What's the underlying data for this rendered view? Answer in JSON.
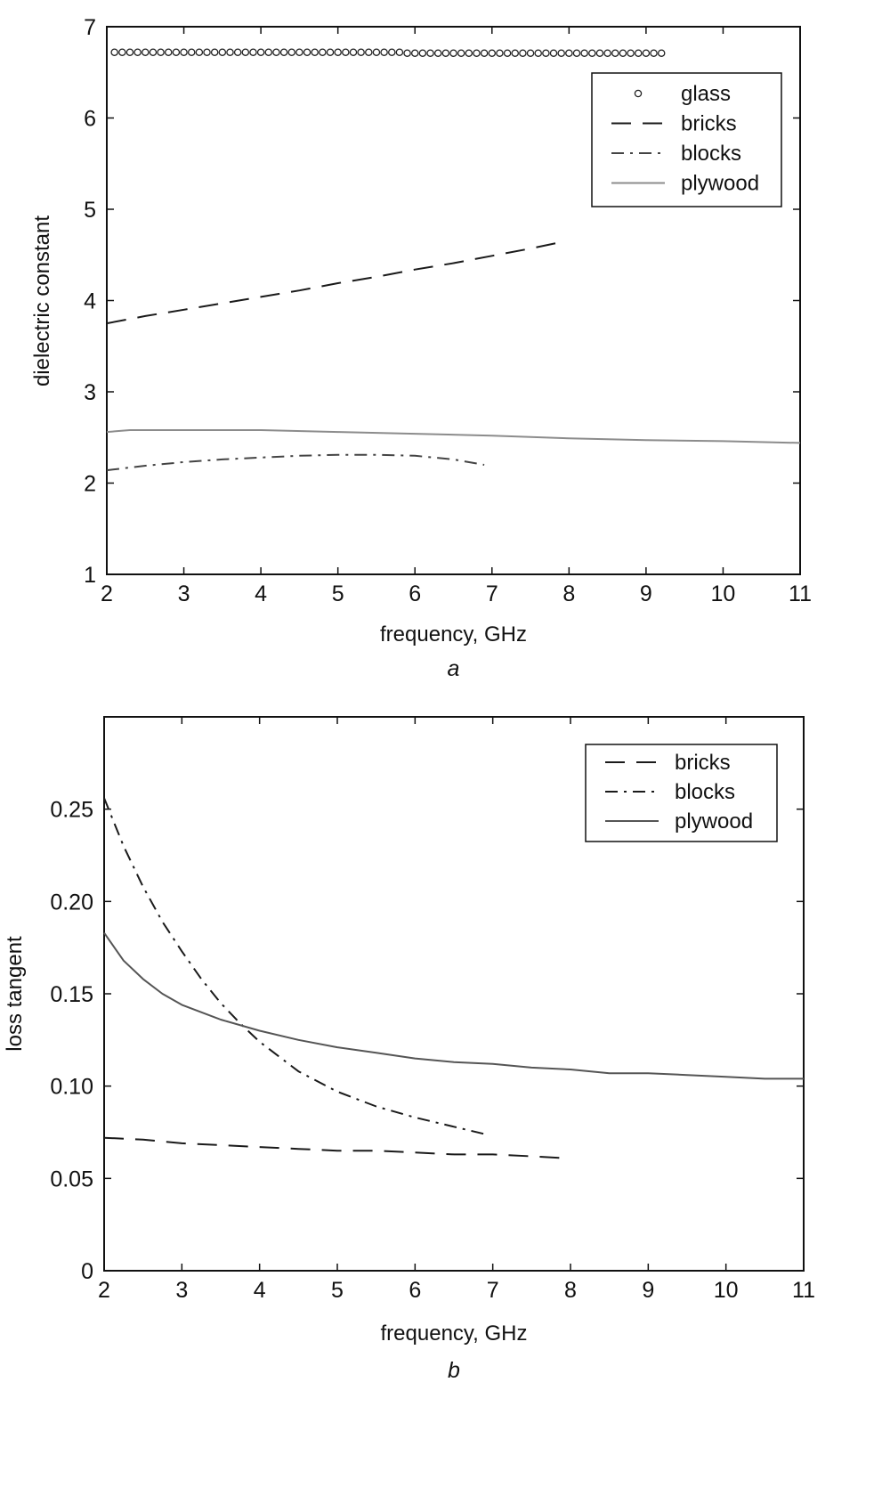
{
  "chart_data": [
    {
      "type": "line",
      "panel_label": "a",
      "xlabel": "frequency, GHz",
      "ylabel": "dielectric constant",
      "xlim": [
        2,
        11
      ],
      "ylim": [
        1,
        7
      ],
      "xticks": [
        2,
        3,
        4,
        5,
        6,
        7,
        8,
        9,
        10,
        11
      ],
      "yticks": [
        1,
        2,
        3,
        4,
        5,
        6,
        7
      ],
      "grid": false,
      "legend_position": "top-right",
      "series": [
        {
          "name": "glass",
          "style": "circles",
          "color": "#222222",
          "x": [
            2.1,
            2.2,
            2.3,
            2.4,
            2.5,
            2.6,
            2.7,
            2.8,
            2.9,
            3.0,
            3.1,
            3.2,
            3.3,
            3.4,
            3.5,
            3.6,
            3.7,
            3.8,
            3.9,
            4.0,
            4.1,
            4.2,
            4.3,
            4.4,
            4.5,
            4.6,
            4.7,
            4.8,
            4.9,
            5.0,
            5.1,
            5.2,
            5.3,
            5.4,
            5.5,
            5.6,
            5.7,
            5.8,
            5.9,
            6.0,
            6.1,
            6.2,
            6.3,
            6.4,
            6.5,
            6.6,
            6.7,
            6.8,
            6.9,
            7.0,
            7.1,
            7.2,
            7.3,
            7.4,
            7.5,
            7.6,
            7.7,
            7.8,
            7.9,
            8.0,
            8.1,
            8.2,
            8.3,
            8.4,
            8.5,
            8.6,
            8.7,
            8.8,
            8.9,
            9.0,
            9.1,
            9.2
          ],
          "y": [
            6.72,
            6.72,
            6.72,
            6.72,
            6.72,
            6.72,
            6.72,
            6.72,
            6.72,
            6.72,
            6.72,
            6.72,
            6.72,
            6.72,
            6.72,
            6.72,
            6.72,
            6.72,
            6.72,
            6.72,
            6.72,
            6.72,
            6.72,
            6.72,
            6.72,
            6.72,
            6.72,
            6.72,
            6.72,
            6.72,
            6.72,
            6.72,
            6.72,
            6.72,
            6.72,
            6.72,
            6.72,
            6.72,
            6.71,
            6.71,
            6.71,
            6.71,
            6.71,
            6.71,
            6.71,
            6.71,
            6.71,
            6.71,
            6.71,
            6.71,
            6.71,
            6.71,
            6.71,
            6.71,
            6.71,
            6.71,
            6.71,
            6.71,
            6.71,
            6.71,
            6.71,
            6.71,
            6.71,
            6.71,
            6.71,
            6.71,
            6.71,
            6.71,
            6.71,
            6.71,
            6.71,
            6.71
          ]
        },
        {
          "name": "bricks",
          "style": "dashed",
          "color": "#1a1a1a",
          "x": [
            2.0,
            2.5,
            3.0,
            3.5,
            4.0,
            4.5,
            5.0,
            5.5,
            6.0,
            6.5,
            7.0,
            7.5,
            7.9
          ],
          "y": [
            3.75,
            3.83,
            3.9,
            3.97,
            4.04,
            4.11,
            4.19,
            4.26,
            4.34,
            4.41,
            4.49,
            4.57,
            4.64
          ]
        },
        {
          "name": "blocks",
          "style": "dashdot",
          "color": "#444444",
          "x": [
            2.0,
            2.5,
            3.0,
            3.5,
            4.0,
            4.5,
            5.0,
            5.5,
            6.0,
            6.5,
            6.9
          ],
          "y": [
            2.14,
            2.19,
            2.23,
            2.26,
            2.28,
            2.3,
            2.31,
            2.31,
            2.3,
            2.26,
            2.2
          ]
        },
        {
          "name": "plywood",
          "style": "solid",
          "color": "#8c8c8c",
          "x": [
            2.0,
            2.3,
            3.0,
            4.0,
            5.0,
            6.0,
            7.0,
            8.0,
            9.0,
            10.0,
            11.0
          ],
          "y": [
            2.56,
            2.58,
            2.58,
            2.58,
            2.56,
            2.54,
            2.52,
            2.49,
            2.47,
            2.46,
            2.44
          ]
        }
      ]
    },
    {
      "type": "line",
      "panel_label": "b",
      "xlabel": "frequency, GHz",
      "ylabel": "loss tangent",
      "xlim": [
        2,
        11
      ],
      "ylim": [
        0,
        0.3
      ],
      "xticks": [
        2,
        3,
        4,
        5,
        6,
        7,
        8,
        9,
        10,
        11
      ],
      "yticks": [
        0,
        0.05,
        0.1,
        0.15,
        0.2,
        0.25
      ],
      "ytick_labels": [
        "0",
        "0.05",
        "0.10",
        "0.15",
        "0.20",
        "0.25"
      ],
      "grid": false,
      "legend_position": "top-right",
      "series": [
        {
          "name": "bricks",
          "style": "dashed",
          "color": "#1a1a1a",
          "x": [
            2.0,
            2.5,
            3.0,
            3.5,
            4.0,
            4.5,
            5.0,
            5.5,
            6.0,
            6.5,
            7.0,
            7.5,
            7.9
          ],
          "y": [
            0.072,
            0.071,
            0.069,
            0.068,
            0.067,
            0.066,
            0.065,
            0.065,
            0.064,
            0.063,
            0.063,
            0.062,
            0.061
          ]
        },
        {
          "name": "blocks",
          "style": "dashdot",
          "color": "#1a1a1a",
          "x": [
            2.0,
            2.25,
            2.5,
            2.75,
            3.0,
            3.25,
            3.5,
            3.75,
            4.0,
            4.5,
            5.0,
            5.5,
            6.0,
            6.5,
            6.9
          ],
          "y": [
            0.256,
            0.23,
            0.208,
            0.189,
            0.173,
            0.158,
            0.145,
            0.134,
            0.124,
            0.108,
            0.097,
            0.089,
            0.083,
            0.078,
            0.074
          ]
        },
        {
          "name": "plywood",
          "style": "solid",
          "color": "#555555",
          "x": [
            2.0,
            2.25,
            2.5,
            2.75,
            3.0,
            3.5,
            4.0,
            4.5,
            5.0,
            5.5,
            6.0,
            6.5,
            7.0,
            7.5,
            8.0,
            8.5,
            9.0,
            9.5,
            10.0,
            10.5,
            11.0
          ],
          "y": [
            0.183,
            0.168,
            0.158,
            0.15,
            0.144,
            0.136,
            0.13,
            0.125,
            0.121,
            0.118,
            0.115,
            0.113,
            0.112,
            0.11,
            0.109,
            0.107,
            0.107,
            0.106,
            0.105,
            0.104,
            0.104
          ]
        }
      ]
    }
  ]
}
